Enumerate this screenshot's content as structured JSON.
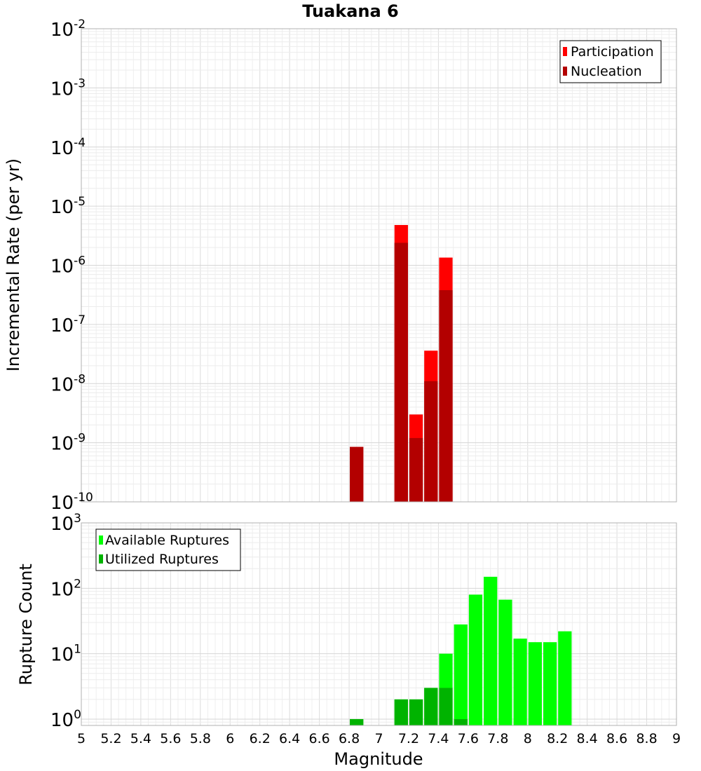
{
  "chart_data": {
    "title": "Tuakana 6",
    "xlabel": "Magnitude",
    "xlim": [
      5,
      9
    ],
    "x_ticks": [
      "5",
      "5.2",
      "5.4",
      "5.6",
      "5.8",
      "6",
      "6.2",
      "6.4",
      "6.6",
      "6.8",
      "7",
      "7.2",
      "7.4",
      "7.6",
      "7.8",
      "8",
      "8.2",
      "8.4",
      "8.6",
      "8.8",
      "9"
    ],
    "grid": true,
    "panels": [
      {
        "type": "bar",
        "ylabel": "Incremental Rate (per yr)",
        "yscale": "log",
        "ylim": [
          1e-10,
          0.01
        ],
        "y_ticks": [
          {
            "base": "10",
            "exp": "-10"
          },
          {
            "base": "10",
            "exp": "-9"
          },
          {
            "base": "10",
            "exp": "-8"
          },
          {
            "base": "10",
            "exp": "-7"
          },
          {
            "base": "10",
            "exp": "-6"
          },
          {
            "base": "10",
            "exp": "-5"
          },
          {
            "base": "10",
            "exp": "-4"
          },
          {
            "base": "10",
            "exp": "-3"
          },
          {
            "base": "10",
            "exp": "-2"
          }
        ],
        "legend_position": "top-right",
        "x": [
          6.85,
          7.15,
          7.25,
          7.35,
          7.45
        ],
        "series": [
          {
            "name": "Participation",
            "color": "#ff0000",
            "values": [
              8.5e-10,
              4.8e-06,
              3e-09,
              3.6e-08,
              1.35e-06
            ]
          },
          {
            "name": "Nucleation",
            "color": "#b30000",
            "values": [
              8.5e-10,
              2.4e-06,
              1.2e-09,
              1.1e-08,
              3.8e-07
            ]
          }
        ]
      },
      {
        "type": "bar",
        "ylabel": "Rupture Count",
        "yscale": "log",
        "ylim": [
          0.8,
          1000
        ],
        "y_ticks": [
          {
            "base": "10",
            "exp": "0"
          },
          {
            "base": "10",
            "exp": "1"
          },
          {
            "base": "10",
            "exp": "2"
          },
          {
            "base": "10",
            "exp": "3"
          }
        ],
        "legend_position": "top-left",
        "x": [
          6.85,
          7.15,
          7.25,
          7.35,
          7.45,
          7.55,
          7.65,
          7.75,
          7.85,
          7.95,
          8.05,
          8.15,
          8.25
        ],
        "series": [
          {
            "name": "Available Ruptures",
            "color": "#00ff00",
            "values": [
              1,
              2,
              2,
              3,
              10,
              28,
              80,
              150,
              67,
              17,
              15,
              15,
              22
            ]
          },
          {
            "name": "Utilized Ruptures",
            "color": "#00b300",
            "values": [
              1,
              2,
              2,
              3,
              3,
              1,
              null,
              null,
              null,
              null,
              null,
              null,
              null
            ]
          }
        ]
      }
    ]
  }
}
